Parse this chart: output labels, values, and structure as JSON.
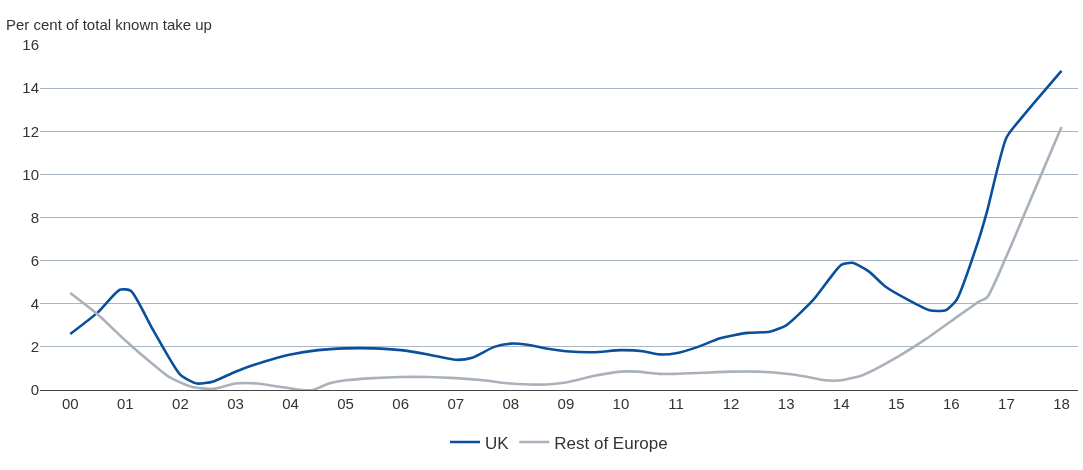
{
  "chart_data": {
    "type": "line",
    "ylabel": "Per cent of total known take up",
    "xlim": [
      -0.55,
      18.3
    ],
    "ylim": [
      0,
      16
    ],
    "yticks": [
      0,
      2,
      4,
      6,
      8,
      10,
      12,
      14,
      16
    ],
    "xticks": [
      {
        "value": 0,
        "label": "00"
      },
      {
        "value": 1,
        "label": "01"
      },
      {
        "value": 2,
        "label": "02"
      },
      {
        "value": 3,
        "label": "03"
      },
      {
        "value": 4,
        "label": "04"
      },
      {
        "value": 5,
        "label": "05"
      },
      {
        "value": 6,
        "label": "06"
      },
      {
        "value": 7,
        "label": "07"
      },
      {
        "value": 8,
        "label": "08"
      },
      {
        "value": 9,
        "label": "09"
      },
      {
        "value": 10,
        "label": "10"
      },
      {
        "value": 11,
        "label": "11"
      },
      {
        "value": 12,
        "label": "12"
      },
      {
        "value": 13,
        "label": "13"
      },
      {
        "value": 14,
        "label": "14"
      },
      {
        "value": 15,
        "label": "15"
      },
      {
        "value": 16,
        "label": "16"
      },
      {
        "value": 17,
        "label": "17"
      },
      {
        "value": 18,
        "label": "18"
      }
    ],
    "grid": "y",
    "legend": "bottom",
    "marker": "none",
    "line_style": "solid",
    "series": [
      {
        "name": "UK",
        "color": "#0a4f9c",
        "x": [
          0,
          0.5,
          0.9,
          1.1,
          1.5,
          2.0,
          2.3,
          2.6,
          3.0,
          3.5,
          4.0,
          4.5,
          5.0,
          5.5,
          6.0,
          6.5,
          7.0,
          7.3,
          7.7,
          8.0,
          8.3,
          8.7,
          9.0,
          9.5,
          10.0,
          10.4,
          10.7,
          11.0,
          11.4,
          11.8,
          12.3,
          12.7,
          13.0,
          13.5,
          13.8,
          14.0,
          14.2,
          14.5,
          14.8,
          15.2,
          15.6,
          15.9,
          16.1,
          16.5,
          16.65,
          17.0,
          17.3,
          18.0
        ],
        "values": [
          2.6,
          3.6,
          4.65,
          4.6,
          2.8,
          0.7,
          0.3,
          0.4,
          0.85,
          1.3,
          1.65,
          1.85,
          1.93,
          1.93,
          1.85,
          1.65,
          1.4,
          1.5,
          2.0,
          2.15,
          2.1,
          1.9,
          1.8,
          1.75,
          1.85,
          1.8,
          1.65,
          1.7,
          2.0,
          2.4,
          2.65,
          2.7,
          3.0,
          4.2,
          5.2,
          5.8,
          5.9,
          5.5,
          4.8,
          4.2,
          3.7,
          3.7,
          4.2,
          7.0,
          8.3,
          11.7,
          12.7,
          14.8
        ]
      },
      {
        "name": "Rest of Europe",
        "color": "#a9b2ba",
        "x": [
          0,
          0.5,
          1.0,
          1.5,
          1.8,
          2.2,
          2.6,
          3.0,
          3.4,
          3.8,
          4.2,
          4.4,
          4.7,
          5.0,
          5.5,
          6.0,
          6.5,
          7.0,
          7.5,
          8.0,
          8.5,
          9.0,
          9.5,
          10.0,
          10.3,
          10.7,
          11.0,
          11.5,
          12.0,
          12.5,
          13.0,
          13.4,
          13.7,
          14.0,
          14.4,
          15.0,
          15.5,
          16.0,
          16.5,
          16.65,
          17.0,
          17.5,
          18.0
        ],
        "values": [
          4.5,
          3.5,
          2.3,
          1.2,
          0.6,
          0.15,
          0.05,
          0.3,
          0.3,
          0.15,
          0,
          0,
          0.3,
          0.45,
          0.55,
          0.6,
          0.6,
          0.55,
          0.45,
          0.3,
          0.25,
          0.35,
          0.65,
          0.85,
          0.85,
          0.75,
          0.75,
          0.8,
          0.85,
          0.85,
          0.75,
          0.6,
          0.45,
          0.45,
          0.7,
          1.5,
          2.3,
          3.2,
          4.1,
          4.3,
          6.2,
          9.2,
          12.2
        ]
      }
    ]
  }
}
